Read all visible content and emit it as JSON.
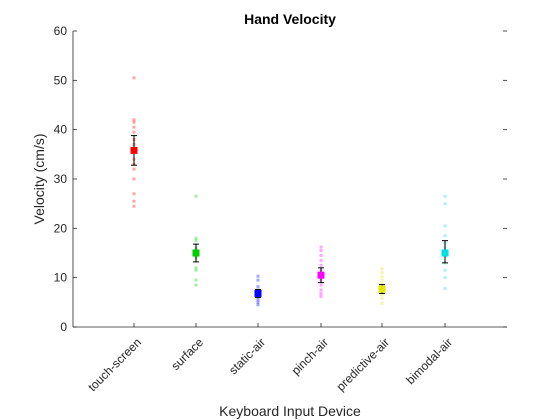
{
  "chart_data": {
    "type": "scatter",
    "title": "Hand Velocity",
    "xlabel": "Keyboard Input Device",
    "ylabel": "Velocity (cm/s)",
    "ylim": [
      0,
      60
    ],
    "yticks": [
      0,
      10,
      20,
      30,
      40,
      50,
      60
    ],
    "categories": [
      "touch-screen",
      "surface",
      "static-air",
      "pinch-air",
      "predictive-air",
      "bimodal-air"
    ],
    "series": [
      {
        "category": "touch-screen",
        "color": "#ff0000",
        "mean": 35.8,
        "error_low": 32.8,
        "error_high": 38.8,
        "points": [
          50.5,
          42,
          41.5,
          40.5,
          39.5,
          38,
          37,
          36,
          34,
          33,
          32,
          30,
          27,
          25.5,
          24.5
        ]
      },
      {
        "category": "surface",
        "color": "#00cc00",
        "mean": 15.0,
        "error_low": 13.2,
        "error_high": 16.8,
        "points": [
          26.5,
          18,
          17.5,
          16,
          15,
          14,
          12,
          11.5,
          9.5,
          8.5
        ]
      },
      {
        "category": "static-air",
        "color": "#0000ff",
        "mean": 6.8,
        "error_low": 6.0,
        "error_high": 7.6,
        "points": [
          10.3,
          9.5,
          8.2,
          7.5,
          7,
          6.5,
          6,
          5.5,
          5,
          4.5
        ]
      },
      {
        "category": "pinch-air",
        "color": "#ff00ff",
        "mean": 10.5,
        "error_low": 9.0,
        "error_high": 12.0,
        "points": [
          16.2,
          15.5,
          14.5,
          13.5,
          12.5,
          11.5,
          10.5,
          9.5,
          8.5,
          7.5,
          6.8,
          6.2
        ]
      },
      {
        "category": "predictive-air",
        "color": "#e6e600",
        "mean": 7.7,
        "error_low": 6.8,
        "error_high": 8.6,
        "points": [
          11.8,
          11,
          10.2,
          9.5,
          8.8,
          8,
          7.3,
          6.5,
          5.8,
          4.8
        ]
      },
      {
        "category": "bimodal-air",
        "color": "#00e0e0",
        "mean": 15.0,
        "error_low": 13.0,
        "error_high": 17.5,
        "points": [
          26.5,
          25,
          20.5,
          18.5,
          17,
          16,
          14.5,
          13,
          11.5,
          10,
          7.8
        ]
      }
    ]
  }
}
